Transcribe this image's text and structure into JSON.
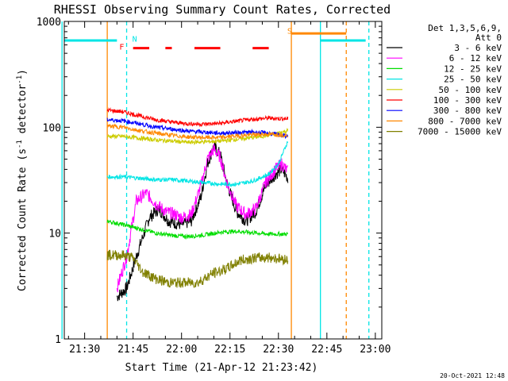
{
  "chart_data": {
    "type": "line",
    "title": "RHESSI Observing Summary Count Rates, Corrected",
    "xlabel": "Start Time (21-Apr-12 21:23:42)",
    "ylabel": "Corrected Count Rate (s⁻¹ detector⁻¹)",
    "ylabel_parts": [
      "Corrected Count Rate (s",
      "-1",
      " detector",
      "-1",
      ")"
    ],
    "y_scale": "log",
    "ylim": [
      1,
      1000
    ],
    "y_ticks": [
      1,
      10,
      100,
      1000
    ],
    "y_tick_labels": [
      "1",
      "10",
      "100",
      "1000"
    ],
    "x_domain_min": [
      21,
      23.7
    ],
    "x_ticks_min": [
      [
        21,
        30
      ],
      [
        21,
        45
      ],
      [
        22,
        0
      ],
      [
        22,
        15
      ],
      [
        22,
        30
      ],
      [
        22,
        45
      ],
      [
        23,
        0
      ]
    ],
    "x_tick_labels": [
      "21:30",
      "21:45",
      "22:00",
      "22:15",
      "22:30",
      "22:45",
      "23:00"
    ],
    "grid": false,
    "legend_placement": "outside-right",
    "legend_header": [
      "Det 1,3,5,6,9,",
      "Att 0"
    ],
    "timestamp": "20-Oct-2021 12:48",
    "flags": [
      {
        "label": "N",
        "color": "#00e5e5"
      },
      {
        "label": "F",
        "color": "#ff0000"
      },
      {
        "label": "S",
        "color": "#ff8800"
      }
    ],
    "series": [
      {
        "name": "3 - 6 keV",
        "color": "#000000",
        "points": [
          [
            "21:40",
            2.5
          ],
          [
            "21:43",
            3
          ],
          [
            "21:46",
            6
          ],
          [
            "21:50",
            14
          ],
          [
            "21:53",
            17
          ],
          [
            "21:56",
            13
          ],
          [
            "22:00",
            12
          ],
          [
            "22:03",
            13
          ],
          [
            "22:06",
            22
          ],
          [
            "22:08",
            45
          ],
          [
            "22:10",
            66
          ],
          [
            "22:12",
            55
          ],
          [
            "22:14",
            30
          ],
          [
            "22:17",
            16
          ],
          [
            "22:20",
            13
          ],
          [
            "22:23",
            16
          ],
          [
            "22:26",
            28
          ],
          [
            "22:29",
            36
          ],
          [
            "22:31",
            40
          ],
          [
            "22:33",
            33
          ]
        ]
      },
      {
        "name": "6 - 12 keV",
        "color": "#ff00ff",
        "points": [
          [
            "21:40",
            3
          ],
          [
            "21:43",
            6
          ],
          [
            "21:46",
            20
          ],
          [
            "21:49",
            24
          ],
          [
            "21:52",
            19
          ],
          [
            "21:55",
            16
          ],
          [
            "21:58",
            15
          ],
          [
            "22:00",
            14
          ],
          [
            "22:03",
            15
          ],
          [
            "22:06",
            28
          ],
          [
            "22:08",
            50
          ],
          [
            "22:10",
            62
          ],
          [
            "22:12",
            52
          ],
          [
            "22:14",
            30
          ],
          [
            "22:17",
            18
          ],
          [
            "22:20",
            15
          ],
          [
            "22:23",
            17
          ],
          [
            "22:26",
            30
          ],
          [
            "22:29",
            40
          ],
          [
            "22:31",
            45
          ],
          [
            "22:33",
            38
          ]
        ]
      },
      {
        "name": "12 - 25 keV",
        "color": "#00dd00",
        "points": [
          [
            "21:37",
            13
          ],
          [
            "21:42",
            12
          ],
          [
            "21:47",
            11
          ],
          [
            "21:52",
            10
          ],
          [
            "21:57",
            9.5
          ],
          [
            "22:02",
            9.3
          ],
          [
            "22:07",
            9.6
          ],
          [
            "22:12",
            10.2
          ],
          [
            "22:17",
            10.4
          ],
          [
            "22:22",
            10.1
          ],
          [
            "22:27",
            9.8
          ],
          [
            "22:33",
            9.8
          ]
        ]
      },
      {
        "name": "25 - 50 keV",
        "color": "#00e5e5",
        "points": [
          [
            "21:37",
            34
          ],
          [
            "21:42",
            34
          ],
          [
            "21:47",
            33
          ],
          [
            "21:52",
            32
          ],
          [
            "21:57",
            32
          ],
          [
            "22:02",
            31
          ],
          [
            "22:07",
            30
          ],
          [
            "22:12",
            29
          ],
          [
            "22:17",
            29
          ],
          [
            "22:22",
            31
          ],
          [
            "22:27",
            36
          ],
          [
            "22:30",
            45
          ],
          [
            "22:33",
            75
          ]
        ]
      },
      {
        "name": "50 - 100 keV",
        "color": "#cccc00",
        "points": [
          [
            "21:37",
            82
          ],
          [
            "21:42",
            82
          ],
          [
            "21:47",
            79
          ],
          [
            "21:52",
            76
          ],
          [
            "21:57",
            74
          ],
          [
            "22:02",
            72
          ],
          [
            "22:07",
            73
          ],
          [
            "22:12",
            74
          ],
          [
            "22:17",
            77
          ],
          [
            "22:22",
            80
          ],
          [
            "22:27",
            84
          ],
          [
            "22:33",
            93
          ]
        ]
      },
      {
        "name": "100 - 300 keV",
        "color": "#ff0000",
        "points": [
          [
            "21:37",
            145
          ],
          [
            "21:42",
            140
          ],
          [
            "21:47",
            128
          ],
          [
            "21:52",
            118
          ],
          [
            "21:57",
            112
          ],
          [
            "22:02",
            108
          ],
          [
            "22:07",
            107
          ],
          [
            "22:12",
            109
          ],
          [
            "22:17",
            114
          ],
          [
            "22:22",
            119
          ],
          [
            "22:27",
            122
          ],
          [
            "22:33",
            120
          ]
        ]
      },
      {
        "name": "300 - 800 keV",
        "color": "#0000ff",
        "points": [
          [
            "21:37",
            118
          ],
          [
            "21:42",
            115
          ],
          [
            "21:47",
            108
          ],
          [
            "21:52",
            100
          ],
          [
            "21:57",
            96
          ],
          [
            "22:02",
            92
          ],
          [
            "22:07",
            90
          ],
          [
            "22:12",
            88
          ],
          [
            "22:17",
            89
          ],
          [
            "22:22",
            90
          ],
          [
            "22:27",
            88
          ],
          [
            "22:33",
            82
          ]
        ]
      },
      {
        "name": "800 - 7000 keV",
        "color": "#ff8800",
        "points": [
          [
            "21:37",
            103
          ],
          [
            "21:42",
            100
          ],
          [
            "21:47",
            93
          ],
          [
            "21:52",
            88
          ],
          [
            "21:57",
            84
          ],
          [
            "22:02",
            81
          ],
          [
            "22:07",
            80
          ],
          [
            "22:12",
            80
          ],
          [
            "22:17",
            83
          ],
          [
            "22:22",
            85
          ],
          [
            "22:27",
            86
          ],
          [
            "22:33",
            84
          ]
        ]
      },
      {
        "name": "7000 - 15000 keV",
        "color": "#808000",
        "points": [
          [
            "21:37",
            6.2
          ],
          [
            "21:42",
            6.2
          ],
          [
            "21:45",
            5.8
          ],
          [
            "21:48",
            4.3
          ],
          [
            "21:52",
            3.7
          ],
          [
            "21:56",
            3.4
          ],
          [
            "22:00",
            3.4
          ],
          [
            "22:05",
            3.4
          ],
          [
            "22:10",
            4.2
          ],
          [
            "22:14",
            4.6
          ],
          [
            "22:18",
            5.5
          ],
          [
            "22:22",
            5.8
          ],
          [
            "22:27",
            5.9
          ],
          [
            "22:33",
            5.6
          ]
        ]
      }
    ],
    "level_segments": [
      {
        "series": "25 - 50 keV",
        "color": "#00e5e5",
        "value": 660,
        "ranges": [
          [
            "21:23",
            "21:40"
          ],
          [
            "22:43",
            "22:57"
          ]
        ]
      },
      {
        "series": "800 - 7000 keV",
        "color": "#ff8800",
        "value": 770,
        "ranges": [
          [
            "22:34",
            "22:51"
          ]
        ]
      },
      {
        "series": "100 - 300 keV",
        "color": "#ff0000",
        "value": 560,
        "ranges": [
          [
            "21:45",
            "21:50"
          ],
          [
            "21:55",
            "21:57"
          ],
          [
            "22:04",
            "22:12"
          ],
          [
            "22:22",
            "22:27"
          ]
        ]
      }
    ],
    "vertical_markers": [
      {
        "color": "#00e5e5",
        "style": "solid",
        "x": [
          "21:23",
          "22:43"
        ]
      },
      {
        "color": "#00e5e5",
        "style": "dashed",
        "x": [
          "21:43",
          "22:58"
        ]
      },
      {
        "color": "#ff8800",
        "style": "solid",
        "x": [
          "21:37",
          "22:34"
        ]
      },
      {
        "color": "#ff8800",
        "style": "dashed",
        "x": [
          "22:51"
        ]
      }
    ]
  }
}
